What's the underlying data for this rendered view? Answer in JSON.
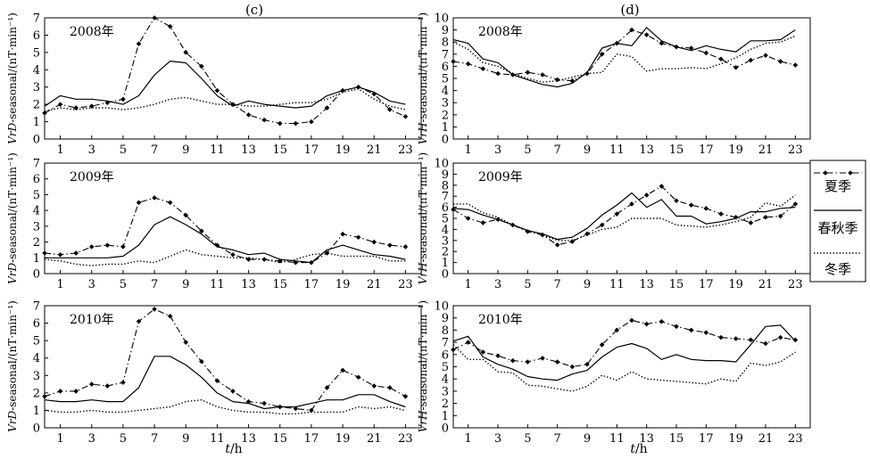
{
  "figure": {
    "panel_c_label": "(c)",
    "panel_d_label": "(d)",
    "xlabel_t": "t",
    "xlabel_unit": "/h",
    "ylabel_D_var": "VrD",
    "ylabel_H_var": "VrH",
    "ylabel_rest": "-seasonal/(nT·min⁻¹)",
    "legend_title": "",
    "colors": {
      "line": "#000000",
      "frame": "#000000"
    }
  },
  "legend": [
    {
      "key": "summer",
      "label": "夏季",
      "style": "dashdot-diamond"
    },
    {
      "key": "equinox",
      "label": "春秋季",
      "style": "solid"
    },
    {
      "key": "winter",
      "label": "冬季",
      "style": "dotted"
    }
  ],
  "chart_data": [
    {
      "type": "line",
      "id": "c2008",
      "panel": "c",
      "title": "2008年",
      "xlabel": "t/h",
      "ylabel": "VrD-seasonal/(nT·min⁻¹)",
      "xlim": [
        0,
        24
      ],
      "ylim": [
        0,
        7
      ],
      "xticks": [
        1,
        3,
        5,
        7,
        9,
        11,
        13,
        15,
        17,
        19,
        21,
        23
      ],
      "yticks": [
        0,
        1,
        2,
        3,
        4,
        5,
        6,
        7
      ],
      "x": [
        0,
        1,
        2,
        3,
        4,
        5,
        6,
        7,
        8,
        9,
        10,
        11,
        12,
        13,
        14,
        15,
        16,
        17,
        18,
        19,
        20,
        21,
        22,
        23
      ],
      "series": [
        {
          "name": "夏季",
          "key": "summer",
          "values": [
            1.5,
            2.0,
            1.8,
            1.9,
            2.1,
            2.3,
            5.5,
            7.0,
            6.5,
            5.0,
            4.2,
            2.8,
            2.0,
            1.4,
            1.1,
            0.9,
            0.9,
            1.0,
            1.8,
            2.8,
            3.0,
            2.6,
            1.7,
            1.3
          ]
        },
        {
          "name": "春秋季",
          "key": "equinox",
          "values": [
            1.9,
            2.5,
            2.3,
            2.3,
            2.2,
            2.0,
            2.5,
            3.7,
            4.5,
            4.4,
            3.5,
            2.5,
            1.9,
            2.2,
            2.0,
            1.9,
            1.8,
            1.9,
            2.5,
            2.8,
            3.0,
            2.7,
            2.2,
            2.0
          ]
        },
        {
          "name": "冬季",
          "key": "winter",
          "values": [
            1.6,
            1.8,
            1.7,
            1.8,
            1.8,
            1.7,
            1.8,
            2.0,
            2.3,
            2.4,
            2.2,
            2.0,
            2.0,
            1.9,
            1.9,
            2.0,
            2.1,
            2.1,
            2.3,
            2.7,
            2.9,
            2.3,
            1.9,
            1.7
          ]
        }
      ]
    },
    {
      "type": "line",
      "id": "c2009",
      "panel": "c",
      "title": "2009年",
      "xlabel": "t/h",
      "ylabel": "VrD-seasonal/(nT·min⁻¹)",
      "xlim": [
        0,
        24
      ],
      "ylim": [
        0,
        7
      ],
      "xticks": [
        1,
        3,
        5,
        7,
        9,
        11,
        13,
        15,
        17,
        19,
        21,
        23
      ],
      "yticks": [
        0,
        1,
        2,
        3,
        4,
        5,
        6,
        7
      ],
      "x": [
        0,
        1,
        2,
        3,
        4,
        5,
        6,
        7,
        8,
        9,
        10,
        11,
        12,
        13,
        14,
        15,
        16,
        17,
        18,
        19,
        20,
        21,
        22,
        23
      ],
      "series": [
        {
          "name": "夏季",
          "key": "summer",
          "values": [
            1.3,
            1.2,
            1.3,
            1.7,
            1.8,
            1.7,
            4.5,
            4.8,
            4.5,
            3.7,
            2.7,
            1.8,
            1.2,
            0.9,
            0.9,
            0.8,
            0.7,
            0.7,
            1.3,
            2.5,
            2.3,
            2.0,
            1.8,
            1.7
          ]
        },
        {
          "name": "春秋季",
          "key": "equinox",
          "values": [
            1.0,
            1.0,
            1.0,
            1.0,
            1.0,
            1.1,
            1.8,
            3.1,
            3.6,
            3.1,
            2.5,
            1.7,
            1.5,
            1.2,
            1.3,
            0.9,
            0.8,
            0.7,
            1.5,
            1.8,
            1.5,
            1.2,
            1.1,
            0.9
          ]
        },
        {
          "name": "冬季",
          "key": "winter",
          "values": [
            0.9,
            0.8,
            0.6,
            0.5,
            0.6,
            0.6,
            0.8,
            0.7,
            1.1,
            1.5,
            1.2,
            1.1,
            1.0,
            1.0,
            0.9,
            0.7,
            0.9,
            1.2,
            1.3,
            1.1,
            1.1,
            1.1,
            0.8,
            0.8
          ]
        }
      ]
    },
    {
      "type": "line",
      "id": "c2010",
      "panel": "c",
      "title": "2010年",
      "xlabel": "t/h",
      "ylabel": "VrD-seasonal/(nT·min⁻¹)",
      "xlim": [
        0,
        24
      ],
      "ylim": [
        0,
        7
      ],
      "xticks": [
        1,
        3,
        5,
        7,
        9,
        11,
        13,
        15,
        17,
        19,
        21,
        23
      ],
      "yticks": [
        0,
        1,
        2,
        3,
        4,
        5,
        6,
        7
      ],
      "x": [
        0,
        1,
        2,
        3,
        4,
        5,
        6,
        7,
        8,
        9,
        10,
        11,
        12,
        13,
        14,
        15,
        16,
        17,
        18,
        19,
        20,
        21,
        22,
        23
      ],
      "series": [
        {
          "name": "夏季",
          "key": "summer",
          "values": [
            1.8,
            2.1,
            2.1,
            2.5,
            2.4,
            2.6,
            6.1,
            6.8,
            6.4,
            4.9,
            3.8,
            2.7,
            2.1,
            1.5,
            1.4,
            1.2,
            1.1,
            1.0,
            2.3,
            3.3,
            2.9,
            2.4,
            2.3,
            1.8
          ]
        },
        {
          "name": "春秋季",
          "key": "equinox",
          "values": [
            1.6,
            1.5,
            1.5,
            1.6,
            1.5,
            1.5,
            2.3,
            4.1,
            4.1,
            3.6,
            2.9,
            2.0,
            1.5,
            1.4,
            1.1,
            1.2,
            1.2,
            1.4,
            1.6,
            1.6,
            1.9,
            1.9,
            1.5,
            1.2
          ]
        },
        {
          "name": "冬季",
          "key": "winter",
          "values": [
            1.0,
            0.9,
            0.9,
            1.0,
            0.9,
            0.9,
            1.0,
            1.1,
            1.2,
            1.5,
            1.6,
            1.2,
            1.0,
            0.9,
            0.9,
            0.8,
            0.8,
            0.9,
            0.9,
            0.9,
            1.2,
            1.1,
            1.2,
            1.0
          ]
        }
      ]
    },
    {
      "type": "line",
      "id": "d2008",
      "panel": "d",
      "title": "2008年",
      "xlabel": "t/h",
      "ylabel": "VrH-seasonal/(nT·min⁻¹)",
      "xlim": [
        0,
        24
      ],
      "ylim": [
        0,
        10
      ],
      "xticks": [
        1,
        3,
        5,
        7,
        9,
        11,
        13,
        15,
        17,
        19,
        21,
        23
      ],
      "yticks": [
        0,
        1,
        2,
        3,
        4,
        5,
        6,
        7,
        8,
        9,
        10
      ],
      "x": [
        0,
        1,
        2,
        3,
        4,
        5,
        6,
        7,
        8,
        9,
        10,
        11,
        12,
        13,
        14,
        15,
        16,
        17,
        18,
        19,
        20,
        21,
        22,
        23
      ],
      "series": [
        {
          "name": "夏季",
          "key": "summer",
          "values": [
            6.4,
            6.2,
            5.8,
            5.4,
            5.3,
            5.5,
            5.3,
            4.9,
            4.8,
            5.4,
            7.0,
            7.9,
            9.0,
            8.6,
            7.9,
            7.6,
            7.5,
            7.1,
            6.6,
            5.9,
            6.5,
            6.9,
            6.4,
            6.1
          ]
        },
        {
          "name": "春秋季",
          "key": "equinox",
          "values": [
            8.2,
            7.9,
            6.6,
            6.3,
            5.3,
            4.9,
            4.5,
            4.3,
            4.6,
            5.5,
            7.5,
            7.9,
            7.7,
            9.2,
            8.1,
            7.6,
            7.3,
            7.7,
            7.4,
            7.2,
            8.1,
            8.1,
            8.2,
            9.0
          ]
        },
        {
          "name": "冬季",
          "key": "winter",
          "values": [
            8.0,
            7.4,
            6.3,
            6.0,
            5.4,
            5.0,
            4.7,
            4.8,
            5.1,
            5.4,
            5.5,
            7.0,
            6.8,
            5.6,
            5.8,
            5.8,
            5.9,
            5.8,
            6.2,
            6.7,
            7.4,
            7.9,
            8.0,
            8.5
          ]
        }
      ]
    },
    {
      "type": "line",
      "id": "d2009",
      "panel": "d",
      "title": "2009年",
      "xlabel": "t/h",
      "ylabel": "VrH-seasonal/(nT·min⁻¹)",
      "xlim": [
        0,
        24
      ],
      "ylim": [
        0,
        10
      ],
      "xticks": [
        1,
        3,
        5,
        7,
        9,
        11,
        13,
        15,
        17,
        19,
        21,
        23
      ],
      "yticks": [
        0,
        1,
        2,
        3,
        4,
        5,
        6,
        7,
        8,
        9,
        10
      ],
      "x": [
        0,
        1,
        2,
        3,
        4,
        5,
        6,
        7,
        8,
        9,
        10,
        11,
        12,
        13,
        14,
        15,
        16,
        17,
        18,
        19,
        20,
        21,
        22,
        23
      ],
      "series": [
        {
          "name": "夏季",
          "key": "summer",
          "values": [
            5.8,
            5.0,
            4.6,
            4.9,
            4.4,
            3.8,
            3.5,
            2.6,
            2.9,
            3.6,
            4.4,
            5.4,
            6.3,
            7.1,
            7.9,
            6.6,
            6.2,
            5.9,
            5.4,
            5.1,
            4.6,
            5.1,
            5.2,
            6.3
          ]
        },
        {
          "name": "春秋季",
          "key": "equinox",
          "values": [
            5.9,
            5.8,
            5.3,
            4.9,
            4.4,
            3.9,
            3.6,
            3.1,
            3.3,
            4.1,
            5.3,
            6.2,
            7.3,
            6.0,
            6.7,
            5.2,
            5.2,
            4.5,
            4.7,
            5.0,
            5.6,
            5.6,
            5.9,
            6.0
          ]
        },
        {
          "name": "冬季",
          "key": "winter",
          "values": [
            6.3,
            6.3,
            5.5,
            5.1,
            4.4,
            3.9,
            3.5,
            3.0,
            3.0,
            3.5,
            4.0,
            4.2,
            5.0,
            5.0,
            5.0,
            4.4,
            4.3,
            4.2,
            4.4,
            4.7,
            5.1,
            6.4,
            6.1,
            7.1
          ]
        }
      ]
    },
    {
      "type": "line",
      "id": "d2010",
      "panel": "d",
      "title": "2010年",
      "xlabel": "t/h",
      "ylabel": "VrH-seasonal/(nT·min⁻¹)",
      "xlim": [
        0,
        24
      ],
      "ylim": [
        0,
        10
      ],
      "xticks": [
        1,
        3,
        5,
        7,
        9,
        11,
        13,
        15,
        17,
        19,
        21,
        23
      ],
      "yticks": [
        0,
        1,
        2,
        3,
        4,
        5,
        6,
        7,
        8,
        9,
        10
      ],
      "x": [
        0,
        1,
        2,
        3,
        4,
        5,
        6,
        7,
        8,
        9,
        10,
        11,
        12,
        13,
        14,
        15,
        16,
        17,
        18,
        19,
        20,
        21,
        22,
        23
      ],
      "series": [
        {
          "name": "夏季",
          "key": "summer",
          "values": [
            6.4,
            7.0,
            6.2,
            5.9,
            5.5,
            5.4,
            5.7,
            5.4,
            5.0,
            5.2,
            6.8,
            8.0,
            8.8,
            8.5,
            8.7,
            8.3,
            8.0,
            7.8,
            7.4,
            7.3,
            7.2,
            6.9,
            7.4,
            7.2
          ]
        },
        {
          "name": "春秋季",
          "key": "equinox",
          "values": [
            7.1,
            7.5,
            5.8,
            5.2,
            4.8,
            4.2,
            4.0,
            3.9,
            4.4,
            4.7,
            5.8,
            6.6,
            6.9,
            6.5,
            5.6,
            6.0,
            5.6,
            5.5,
            5.5,
            5.4,
            6.8,
            8.3,
            8.4,
            7.1
          ]
        },
        {
          "name": "冬季",
          "key": "winter",
          "values": [
            6.8,
            5.6,
            5.6,
            4.6,
            4.5,
            3.5,
            3.4,
            3.2,
            3.0,
            3.4,
            4.3,
            3.9,
            4.6,
            4.0,
            3.9,
            3.8,
            3.7,
            3.6,
            4.0,
            3.8,
            5.3,
            5.1,
            5.4,
            6.2
          ]
        }
      ]
    }
  ]
}
